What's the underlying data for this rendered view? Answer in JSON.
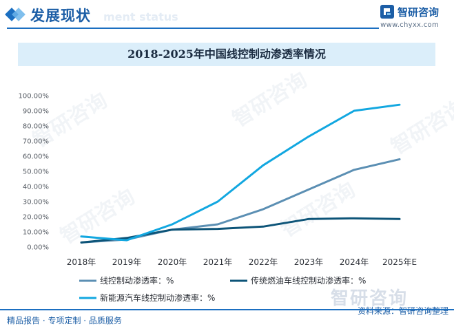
{
  "header": {
    "title": "发展现状",
    "subtitle_watermark": "ment status",
    "brand_name": "智研咨询",
    "brand_url": "www.chyxx.com"
  },
  "watermark_text": "智研咨询",
  "footer": {
    "left_text": "精品报告 · 专项定制 · 品质服务",
    "source": "资料来源：智研咨询整理"
  },
  "colors": {
    "brand": "#1c5ea6",
    "title_band": "#dbeefa"
  },
  "chart_data": {
    "type": "line",
    "title": "2018-2025年中国线控制动渗透率情况",
    "categories": [
      "2018年",
      "2019年",
      "2020年",
      "2021年",
      "2022年",
      "2023年",
      "2024年",
      "2025年E"
    ],
    "ylim": [
      0,
      100
    ],
    "y_ticks": [
      "0.00%",
      "10.00%",
      "20.00%",
      "30.00%",
      "40.00%",
      "50.00%",
      "60.00%",
      "70.00%",
      "80.00%",
      "90.00%",
      "100.00%"
    ],
    "y_tick_values": [
      0,
      10,
      20,
      30,
      40,
      50,
      60,
      70,
      80,
      90,
      100
    ],
    "grid": false,
    "legend_position": "bottom",
    "series": [
      {
        "name": "线控制动渗透率：%",
        "color": "#5b8fb3",
        "values": [
          3,
          5,
          11.5,
          15,
          25,
          38,
          51,
          58
        ]
      },
      {
        "name": "传统燃油车线控制动渗透率：%",
        "color": "#0d5478",
        "values": [
          3,
          6,
          11.5,
          12,
          13.5,
          18.5,
          19,
          18.5
        ]
      },
      {
        "name": "新能源汽车线控制动渗透率：%",
        "color": "#12a7e0",
        "values": [
          7,
          4.5,
          15,
          30,
          54,
          73,
          90,
          94
        ]
      }
    ]
  }
}
